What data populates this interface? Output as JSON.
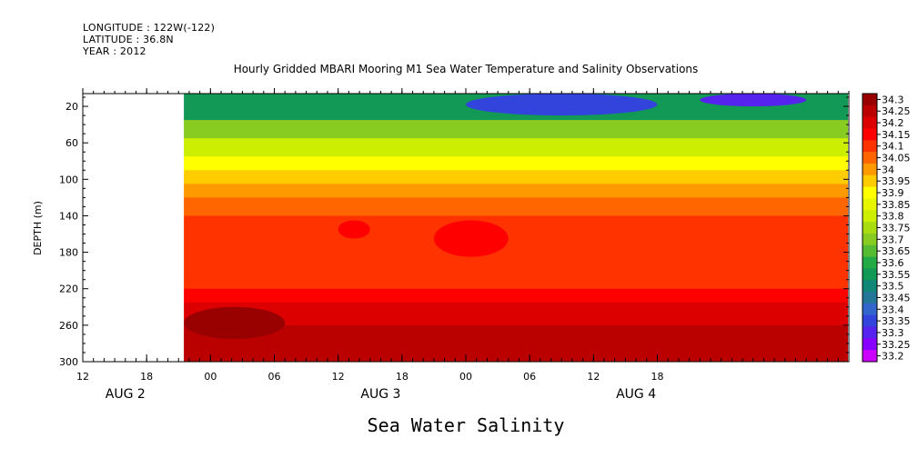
{
  "header": {
    "longitude": "LONGITUDE : 122W(-122)",
    "latitude": "LATITUDE : 36.8N",
    "year": "YEAR : 2012"
  },
  "chart_data": {
    "type": "heatmap",
    "title": "Hourly Gridded MBARI Mooring M1 Sea Water Temperature and Salinity Observations",
    "bottom_title": "Sea Water Salinity",
    "ylabel": "DEPTH (m)",
    "xlabel": "",
    "x_hours_range": [
      12,
      84
    ],
    "data_start_hour": 21.5,
    "ylim": [
      300,
      6
    ],
    "y_ticks": [
      20,
      60,
      100,
      140,
      180,
      220,
      260,
      300
    ],
    "x_ticks": [
      {
        "hour": 12,
        "label": "12"
      },
      {
        "hour": 18,
        "label": "18"
      },
      {
        "hour": 24,
        "label": "00"
      },
      {
        "hour": 30,
        "label": "06"
      },
      {
        "hour": 36,
        "label": "12"
      },
      {
        "hour": 42,
        "label": "18"
      },
      {
        "hour": 48,
        "label": "00"
      },
      {
        "hour": 54,
        "label": "06"
      },
      {
        "hour": 60,
        "label": "12"
      },
      {
        "hour": 66,
        "label": "18"
      }
    ],
    "date_labels": [
      {
        "hour": 16,
        "label": "AUG 2"
      },
      {
        "hour": 40,
        "label": "AUG 3"
      },
      {
        "hour": 64,
        "label": "AUG 4"
      }
    ],
    "colorbar": {
      "levels": [
        "34.3",
        "34.25",
        "34.2",
        "34.15",
        "34.1",
        "34.05",
        "34",
        "33.95",
        "33.9",
        "33.85",
        "33.8",
        "33.75",
        "33.7",
        "33.65",
        "33.6",
        "33.55",
        "33.5",
        "33.45",
        "33.4",
        "33.35",
        "33.3",
        "33.25",
        "33.2"
      ],
      "colors": [
        "#990000",
        "#bb0000",
        "#dd0000",
        "#ff0000",
        "#ff3300",
        "#ff6600",
        "#ff9900",
        "#ffcc00",
        "#ffff00",
        "#e6f500",
        "#ccee00",
        "#aadd11",
        "#88cc22",
        "#55bb33",
        "#22aa44",
        "#119955",
        "#118877",
        "#227799",
        "#3366cc",
        "#3344dd",
        "#5522ee",
        "#8800ff",
        "#cc00ff"
      ]
    },
    "depth_profile": [
      {
        "depth": 6,
        "value": 33.55
      },
      {
        "depth": 20,
        "value": 33.55
      },
      {
        "depth": 35,
        "value": 33.7
      },
      {
        "depth": 55,
        "value": 33.8
      },
      {
        "depth": 75,
        "value": 33.9
      },
      {
        "depth": 90,
        "value": 33.95
      },
      {
        "depth": 105,
        "value": 34.0
      },
      {
        "depth": 120,
        "value": 34.05
      },
      {
        "depth": 140,
        "value": 34.1
      },
      {
        "depth": 210,
        "value": 34.1
      },
      {
        "depth": 220,
        "value": 34.15
      },
      {
        "depth": 235,
        "value": 34.2
      },
      {
        "depth": 260,
        "value": 34.25
      },
      {
        "depth": 300,
        "value": 34.25
      }
    ],
    "features": [
      {
        "value": 33.35,
        "hours": [
          48,
          66
        ],
        "depth": [
          6,
          30
        ]
      },
      {
        "value": 33.3,
        "hours": [
          70,
          80
        ],
        "depth": [
          6,
          20
        ]
      },
      {
        "value": 34.15,
        "hours": [
          36,
          39
        ],
        "depth": [
          145,
          165
        ]
      },
      {
        "value": 34.15,
        "hours": [
          45,
          52
        ],
        "depth": [
          145,
          185
        ]
      },
      {
        "value": 34.3,
        "hours": [
          21.5,
          31
        ],
        "depth": [
          240,
          275
        ]
      }
    ]
  }
}
